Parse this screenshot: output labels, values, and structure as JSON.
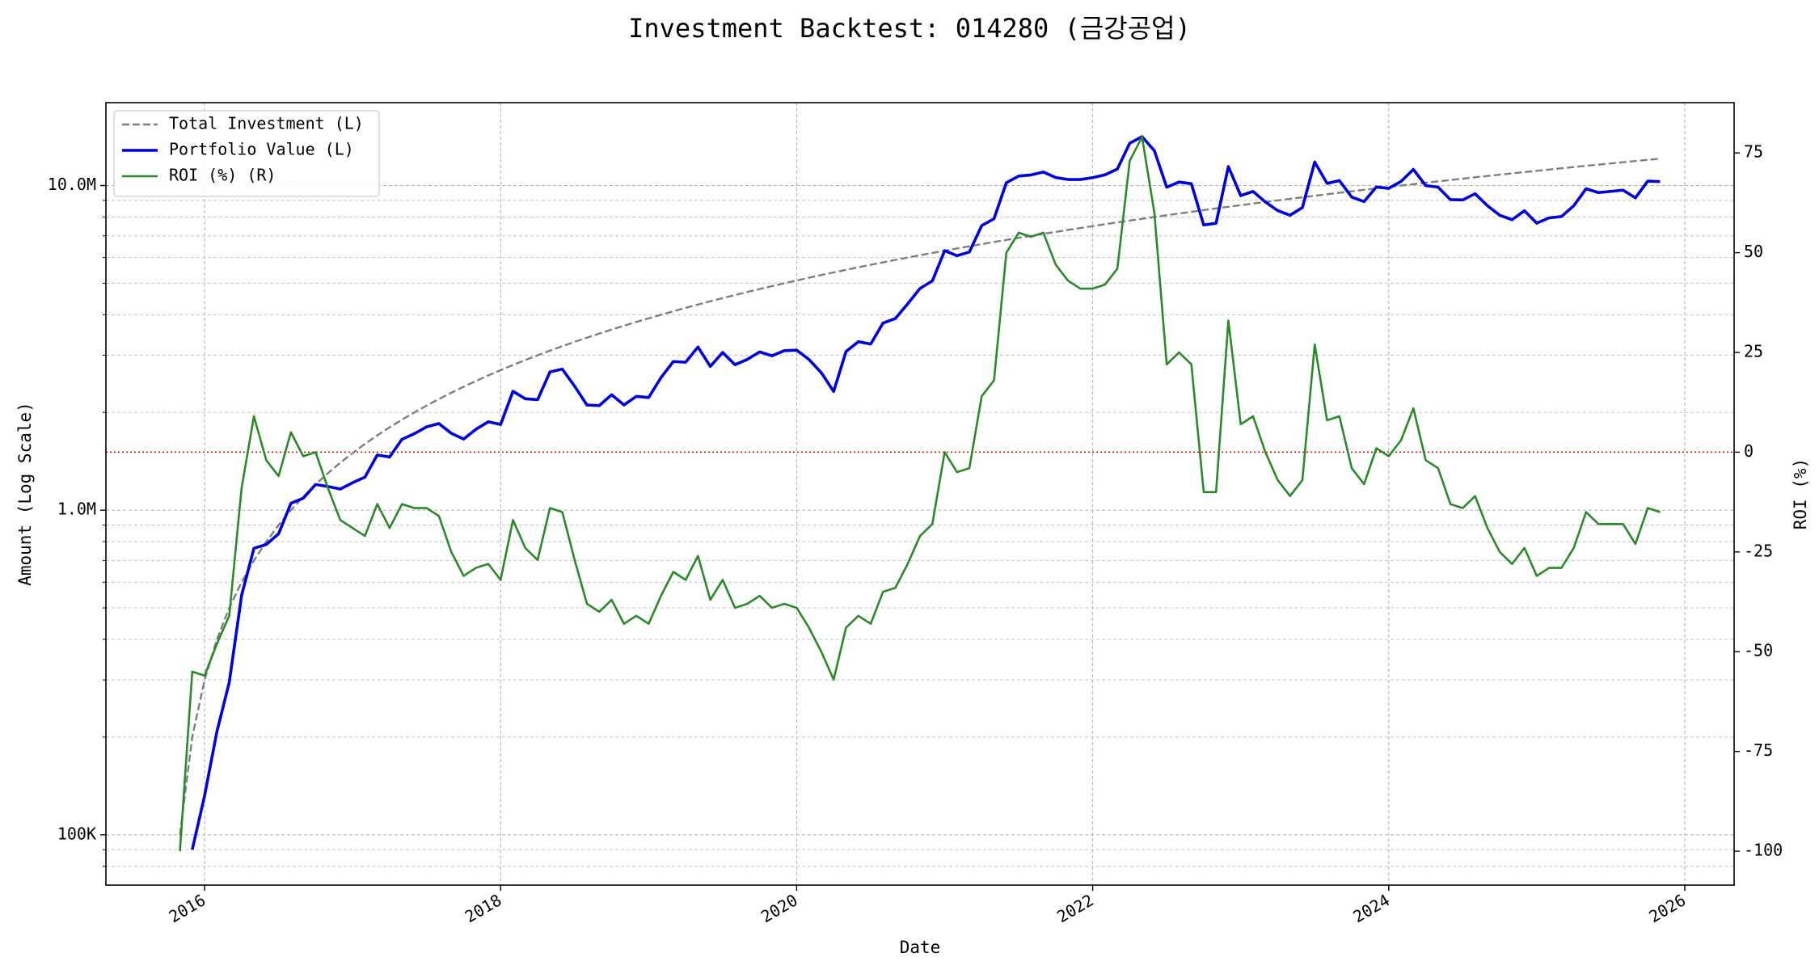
{
  "chart_data": {
    "type": "line",
    "title": "Investment Backtest: 014280 (금강공업)",
    "xlabel": "Date",
    "ylabel": "Amount (Log Scale)",
    "y2label": "ROI (%)",
    "yscale": "log",
    "grid": true,
    "legend": "upper left",
    "ylabel_color": "#0000cc",
    "y2label_color": "#228b22",
    "x": [
      "2015-11",
      "2015-12",
      "2016-01",
      "2016-02",
      "2016-03",
      "2016-04",
      "2016-05",
      "2016-06",
      "2016-07",
      "2016-08",
      "2016-09",
      "2016-10",
      "2016-11",
      "2016-12",
      "2017-01",
      "2017-02",
      "2017-03",
      "2017-04",
      "2017-05",
      "2017-06",
      "2017-07",
      "2017-08",
      "2017-09",
      "2017-10",
      "2017-11",
      "2017-12",
      "2018-01",
      "2018-02",
      "2018-03",
      "2018-04",
      "2018-05",
      "2018-06",
      "2018-07",
      "2018-08",
      "2018-09",
      "2018-10",
      "2018-11",
      "2018-12",
      "2019-01",
      "2019-02",
      "2019-03",
      "2019-04",
      "2019-05",
      "2019-06",
      "2019-07",
      "2019-08",
      "2019-09",
      "2019-10",
      "2019-11",
      "2019-12",
      "2020-01",
      "2020-02",
      "2020-03",
      "2020-04",
      "2020-05",
      "2020-06",
      "2020-07",
      "2020-08",
      "2020-09",
      "2020-10",
      "2020-11",
      "2020-12",
      "2021-01",
      "2021-02",
      "2021-03",
      "2021-04",
      "2021-05",
      "2021-06",
      "2021-07",
      "2021-08",
      "2021-09",
      "2021-10",
      "2021-11",
      "2021-12",
      "2022-01",
      "2022-02",
      "2022-03",
      "2022-04",
      "2022-05",
      "2022-06",
      "2022-07",
      "2022-08",
      "2022-09",
      "2022-10",
      "2022-11",
      "2022-12",
      "2023-01",
      "2023-02",
      "2023-03",
      "2023-04",
      "2023-05",
      "2023-06",
      "2023-07",
      "2023-08",
      "2023-09",
      "2023-10",
      "2023-11",
      "2023-12",
      "2024-01",
      "2024-02",
      "2024-03",
      "2024-04",
      "2024-05",
      "2024-06",
      "2024-07",
      "2024-08",
      "2024-09",
      "2024-10",
      "2024-11",
      "2024-12",
      "2025-01",
      "2025-02",
      "2025-03",
      "2025-04",
      "2025-05",
      "2025-06",
      "2025-07",
      "2025-08",
      "2025-09",
      "2025-10",
      "2025-11"
    ],
    "xlim": [
      "2015-05",
      "2026-05"
    ],
    "xticks": [
      {
        "value": "2016-01",
        "label": "2016"
      },
      {
        "value": "2018-01",
        "label": "2018"
      },
      {
        "value": "2020-01",
        "label": "2020"
      },
      {
        "value": "2022-01",
        "label": "2022"
      },
      {
        "value": "2024-01",
        "label": "2024"
      },
      {
        "value": "2026-01",
        "label": "2026"
      }
    ],
    "ylim": [
      70000,
      18000000
    ],
    "yticks": [
      {
        "value": 100000,
        "label": "100K"
      },
      {
        "value": 1000000,
        "label": "1.0M"
      },
      {
        "value": 10000000,
        "label": "10.0M"
      }
    ],
    "yminorticks": [
      80000,
      90000,
      200000,
      300000,
      400000,
      500000,
      600000,
      700000,
      800000,
      900000,
      2000000,
      3000000,
      4000000,
      5000000,
      6000000,
      7000000,
      8000000,
      9000000
    ],
    "y2lim": [
      -108.5,
      87.6
    ],
    "y2ticks": [
      -100,
      -75,
      -50,
      -25,
      0,
      25,
      50,
      75
    ],
    "reference_line": {
      "axis": "y2",
      "value": 0,
      "color": "#dd0000"
    },
    "series": [
      {
        "name": "Total Investment (L)",
        "color": "#7f7f7f",
        "line_style": "dashed",
        "axis": "y",
        "values": [
          100000,
          200000,
          300000,
          400000,
          500000,
          600000,
          700000,
          800000,
          900000,
          1000000,
          1100000,
          1200000,
          1300000,
          1400000,
          1500000,
          1600000,
          1700000,
          1800000,
          1900000,
          2000000,
          2100000,
          2200000,
          2300000,
          2400000,
          2500000,
          2600000,
          2700000,
          2800000,
          2900000,
          3000000,
          3100000,
          3200000,
          3300000,
          3400000,
          3500000,
          3600000,
          3700000,
          3800000,
          3900000,
          4000000,
          4100000,
          4200000,
          4300000,
          4400000,
          4500000,
          4600000,
          4700000,
          4800000,
          4900000,
          5000000,
          5100000,
          5200000,
          5300000,
          5400000,
          5500000,
          5600000,
          5700000,
          5800000,
          5900000,
          6000000,
          6100000,
          6200000,
          6300000,
          6400000,
          6500000,
          6600000,
          6700000,
          6800000,
          6900000,
          7000000,
          7100000,
          7200000,
          7300000,
          7400000,
          7500000,
          7600000,
          7700000,
          7800000,
          7900000,
          8000000,
          8100000,
          8200000,
          8300000,
          8400000,
          8500000,
          8600000,
          8700000,
          8800000,
          8900000,
          9000000,
          9100000,
          9200000,
          9300000,
          9400000,
          9500000,
          9600000,
          9700000,
          9800000,
          9900000,
          10000000,
          10100000,
          10200000,
          10300000,
          10400000,
          10500000,
          10600000,
          10700000,
          10800000,
          10900000,
          11000000,
          11100000,
          11200000,
          11300000,
          11400000,
          11500000,
          11600000,
          11700000,
          11800000,
          11900000,
          12000000,
          12100000
        ]
      },
      {
        "name": "Portfolio Value (L)",
        "color": "#0000dd",
        "line_style": "solid",
        "axis": "y",
        "values": [
          null,
          90000,
          132000,
          208000,
          295000,
          546000,
          763000,
          784000,
          846000,
          1050000,
          1089000,
          1200000,
          1183000,
          1162000,
          1215000,
          1264000,
          1479000,
          1458000,
          1653000,
          1720000,
          1806000,
          1848000,
          1725000,
          1656000,
          1775000,
          1872000,
          1836000,
          2324000,
          2204000,
          2190000,
          2666000,
          2720000,
          2409000,
          2108000,
          2100000,
          2268000,
          2109000,
          2242000,
          2223000,
          2560000,
          2870000,
          2856000,
          3182000,
          2772000,
          3060000,
          2806000,
          2914000,
          3072000,
          2989000,
          3100000,
          3111000,
          2912000,
          2650000,
          2322000,
          3080000,
          3304000,
          3249000,
          3770000,
          3894000,
          4320000,
          4819000,
          5084000,
          6300000,
          6080000,
          6240000,
          7524000,
          7906000,
          10200000,
          10695000,
          10780000,
          11005000,
          10584000,
          10439000,
          10434000,
          10575000,
          10792000,
          11242000,
          13494000,
          14141000,
          12800000,
          9882000,
          10250000,
          10126000,
          7560000,
          7650000,
          11438000,
          9309000,
          9592000,
          8900000,
          8370000,
          8099000,
          8556000,
          11811000,
          10152000,
          10355000,
          9216000,
          8924000,
          9898000,
          9801000,
          10300000,
          11211000,
          9996000,
          9888000,
          9048000,
          9030000,
          9434000,
          8667000,
          8100000,
          7848000,
          8360000,
          7659000,
          7952000,
          8023000,
          8664000,
          9775000,
          9512000,
          9594000,
          9676000,
          9163000,
          10320000,
          10285000
        ]
      },
      {
        "name": "ROI (%) (R)",
        "color": "#2a8a2a",
        "line_style": "solid",
        "axis": "y2",
        "values": [
          -100,
          -55,
          -56,
          -48,
          -41,
          -9,
          9,
          -2,
          -6,
          5,
          -1,
          0,
          -9,
          -17,
          -19,
          -21,
          -13,
          -19,
          -13,
          -14,
          -14,
          -16,
          -25,
          -31,
          -29,
          -28,
          -32,
          -17,
          -24,
          -27,
          -14,
          -15,
          -27,
          -38,
          -40,
          -37,
          -43,
          -41,
          -43,
          -36,
          -30,
          -32,
          -26,
          -37,
          -32,
          -39,
          -38,
          -36,
          -39,
          -38,
          -39,
          -44,
          -50,
          -57,
          -44,
          -41,
          -43,
          -35,
          -34,
          -28,
          -21,
          -18,
          0,
          -5,
          -4,
          14,
          18,
          50,
          55,
          54,
          55,
          47,
          43,
          41,
          41,
          42,
          46,
          73,
          79,
          60,
          22,
          25,
          22,
          -10,
          -10,
          33,
          7,
          9,
          0,
          -7,
          -11,
          -7,
          27,
          8,
          9,
          -4,
          -8,
          1,
          -1,
          3,
          11,
          -2,
          -4,
          -13,
          -14,
          -11,
          -19,
          -25,
          -28,
          -24,
          -31,
          -29,
          -29,
          -24,
          -15,
          -18,
          -18,
          -18,
          -23,
          -14,
          -15
        ]
      }
    ]
  }
}
